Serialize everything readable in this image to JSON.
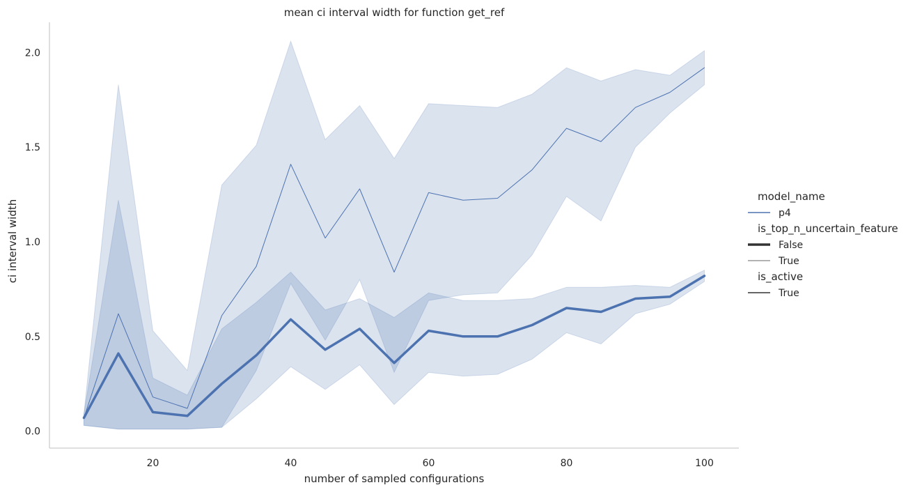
{
  "chart_data": {
    "type": "line",
    "title": "mean ci interval width for function get_ref",
    "xlabel": "number of sampled configurations",
    "ylabel": "ci interval width",
    "xlim": [
      5,
      105
    ],
    "ylim": [
      -0.09,
      2.16
    ],
    "xticks": [
      20,
      40,
      60,
      80,
      100
    ],
    "xtick_labels": [
      "20",
      "40",
      "60",
      "80",
      "100"
    ],
    "yticks": [
      0.0,
      0.5,
      1.0,
      1.5,
      2.0
    ],
    "ytick_labels": [
      "0.0",
      "0.5",
      "1.0",
      "1.5",
      "2.0"
    ],
    "grid": false,
    "legend_position": "right",
    "color": "#4c72b0",
    "x": [
      10,
      15,
      20,
      25,
      30,
      35,
      40,
      45,
      50,
      55,
      60,
      65,
      70,
      75,
      80,
      85,
      90,
      95,
      100
    ],
    "series": [
      {
        "model_name": "p4",
        "is_top_n_uncertain_feature": "False",
        "is_active": "True",
        "line_style": "thick",
        "values": [
          0.07,
          0.41,
          0.1,
          0.08,
          0.25,
          0.4,
          0.59,
          0.43,
          0.54,
          0.36,
          0.53,
          0.5,
          0.5,
          0.56,
          0.65,
          0.63,
          0.7,
          0.71,
          0.82
        ],
        "ci_low": [
          0.03,
          0.01,
          0.01,
          0.01,
          0.02,
          0.17,
          0.34,
          0.22,
          0.35,
          0.14,
          0.31,
          0.29,
          0.3,
          0.38,
          0.52,
          0.46,
          0.62,
          0.67,
          0.79
        ],
        "ci_high": [
          0.09,
          1.22,
          0.28,
          0.19,
          0.54,
          0.68,
          0.84,
          0.64,
          0.7,
          0.6,
          0.73,
          0.69,
          0.69,
          0.7,
          0.76,
          0.76,
          0.77,
          0.76,
          0.85
        ]
      },
      {
        "model_name": "p4",
        "is_top_n_uncertain_feature": "True",
        "is_active": "True",
        "line_style": "thin",
        "values": [
          0.07,
          0.62,
          0.18,
          0.12,
          0.61,
          0.87,
          1.41,
          1.02,
          1.28,
          0.84,
          1.26,
          1.22,
          1.23,
          1.38,
          1.6,
          1.53,
          1.71,
          1.79,
          1.92
        ],
        "ci_low": [
          0.03,
          0.01,
          0.01,
          0.01,
          0.02,
          0.32,
          0.78,
          0.48,
          0.8,
          0.31,
          0.69,
          0.72,
          0.73,
          0.93,
          1.24,
          1.11,
          1.5,
          1.68,
          1.83
        ],
        "ci_high": [
          0.09,
          1.83,
          0.53,
          0.32,
          1.3,
          1.51,
          2.06,
          1.54,
          1.72,
          1.44,
          1.73,
          1.72,
          1.71,
          1.78,
          1.92,
          1.85,
          1.91,
          1.88,
          2.01
        ]
      }
    ],
    "legend": {
      "sections": [
        {
          "title": "model_name",
          "entries": [
            {
              "label": "p4",
              "style": "hue"
            }
          ]
        },
        {
          "title": "is_top_n_uncertain_feature",
          "entries": [
            {
              "label": "False",
              "style": "thick"
            },
            {
              "label": "True",
              "style": "thin"
            }
          ]
        },
        {
          "title": "is_active",
          "entries": [
            {
              "label": "True",
              "style": "solid"
            }
          ]
        }
      ]
    }
  }
}
